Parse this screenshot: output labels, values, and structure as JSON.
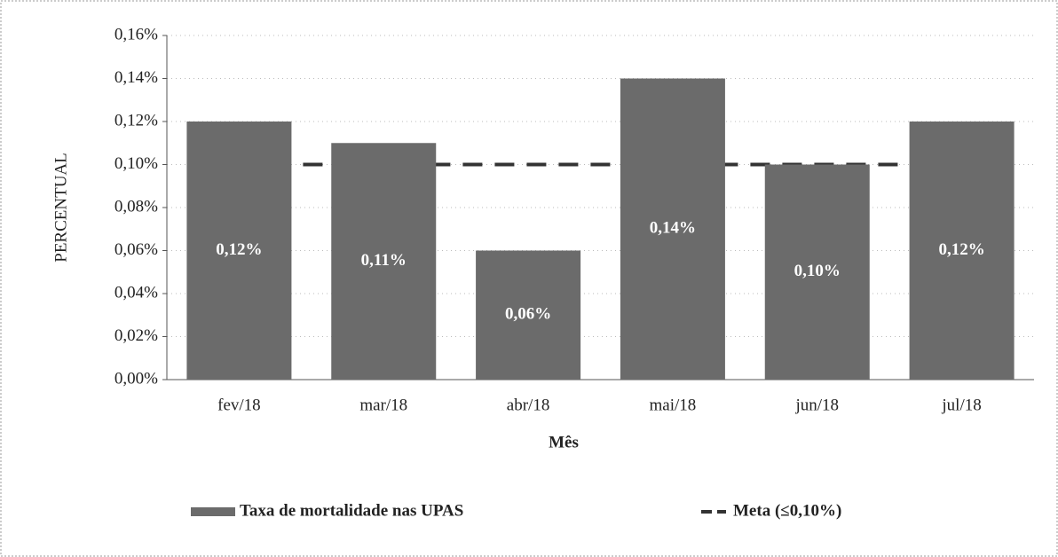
{
  "chart_data": {
    "type": "bar",
    "x_label": "Mês",
    "y_label": "PERCENTUAL",
    "categories": [
      "fev/18",
      "mar/18",
      "abr/18",
      "mai/18",
      "jun/18",
      "jul/18"
    ],
    "series": [
      {
        "name": "Taxa de mortalidade nas UPAS",
        "type": "bar",
        "color": "#6b6b6b",
        "values": [
          0.12,
          0.11,
          0.06,
          0.14,
          0.1,
          0.12
        ],
        "value_labels": [
          "0,12%",
          "0,11%",
          "0,06%",
          "0,14%",
          "0,10%",
          "0,12%"
        ]
      },
      {
        "name": "Meta (≤0,10%)",
        "type": "line",
        "dashed": true,
        "color": "#333333",
        "values": [
          0.1,
          0.1,
          0.1,
          0.1,
          0.1,
          0.1
        ]
      }
    ],
    "ylim": [
      0,
      0.16
    ],
    "yticks": [
      {
        "value": 0,
        "label": "0,00%"
      },
      {
        "value": 0.02,
        "label": "0,02%"
      },
      {
        "value": 0.04,
        "label": "0,04%"
      },
      {
        "value": 0.06,
        "label": "0,06%"
      },
      {
        "value": 0.08,
        "label": "0,08%"
      },
      {
        "value": 0.1,
        "label": "0,10%"
      },
      {
        "value": 0.12,
        "label": "0,12%"
      },
      {
        "value": 0.14,
        "label": "0,14%"
      },
      {
        "value": 0.16,
        "label": "0,16%"
      }
    ],
    "grid": true,
    "legend": "bottom"
  }
}
